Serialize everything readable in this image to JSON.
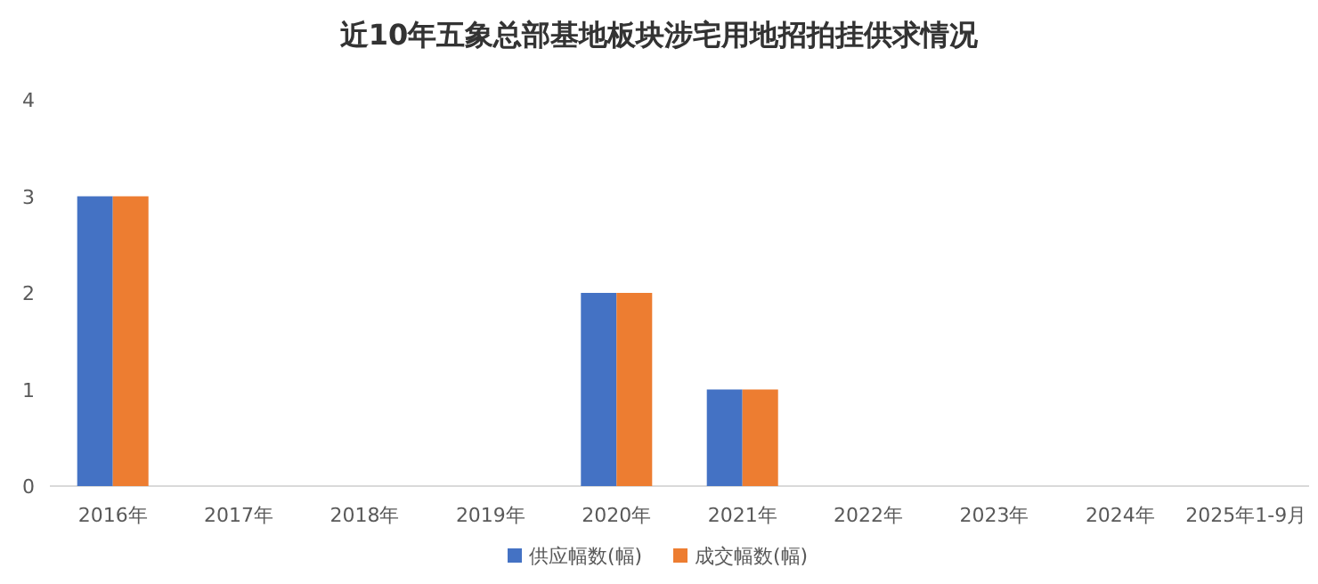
{
  "chart_data": {
    "type": "bar",
    "title": "近10年五象总部基地板块涉宅用地招拍挂供求情况",
    "categories": [
      "2016年",
      "2017年",
      "2018年",
      "2019年",
      "2020年",
      "2021年",
      "2022年",
      "2023年",
      "2024年",
      "2025年1-9月"
    ],
    "series": [
      {
        "name": "供应幅数(幅)",
        "color": "#4472c4",
        "values": [
          3,
          0,
          0,
          0,
          2,
          1,
          0,
          0,
          0,
          0
        ]
      },
      {
        "name": "成交幅数(幅)",
        "color": "#ed7d31",
        "values": [
          3,
          0,
          0,
          0,
          2,
          1,
          0,
          0,
          0,
          0
        ]
      }
    ],
    "ylim": [
      0,
      4
    ],
    "yticks": [
      0,
      1,
      2,
      3,
      4
    ],
    "grid": false,
    "legend": "bottom"
  }
}
